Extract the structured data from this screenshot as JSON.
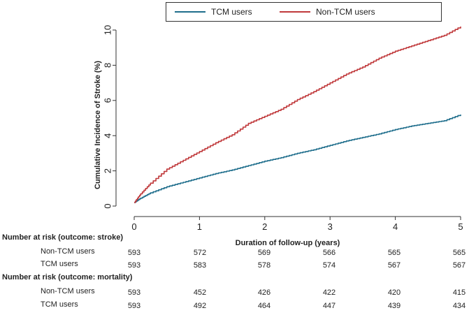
{
  "chart_data": {
    "type": "line",
    "title": "",
    "xlabel": "Duration of follow-up (years)",
    "ylabel": "Cumulative Incidence of Stroke (%)",
    "xlim": [
      0,
      5
    ],
    "ylim": [
      0,
      10
    ],
    "xticks": [
      "0",
      "1",
      "2",
      "3",
      "4",
      "5"
    ],
    "yticks": [
      "0",
      "2",
      "4",
      "6",
      "8",
      "10"
    ],
    "legend_position": "top",
    "series": [
      {
        "name": "TCM users",
        "color": "#1f6e8c",
        "x": [
          0,
          0.1,
          0.25,
          0.5,
          0.75,
          1.0,
          1.25,
          1.5,
          1.75,
          2.0,
          2.25,
          2.5,
          2.75,
          3.0,
          3.25,
          3.5,
          3.75,
          4.0,
          4.25,
          4.5,
          4.75,
          5.0
        ],
        "y": [
          0.2,
          0.45,
          0.75,
          1.1,
          1.35,
          1.6,
          1.85,
          2.05,
          2.3,
          2.55,
          2.75,
          3.0,
          3.2,
          3.45,
          3.7,
          3.9,
          4.1,
          4.35,
          4.55,
          4.7,
          4.85,
          5.2
        ]
      },
      {
        "name": "Non-TCM users",
        "color": "#c0393b",
        "x": [
          0,
          0.1,
          0.25,
          0.5,
          0.75,
          1.0,
          1.25,
          1.5,
          1.75,
          2.0,
          2.25,
          2.5,
          2.75,
          3.0,
          3.25,
          3.5,
          3.75,
          4.0,
          4.25,
          4.5,
          4.75,
          5.0
        ],
        "y": [
          0.2,
          0.7,
          1.3,
          2.1,
          2.6,
          3.1,
          3.6,
          4.05,
          4.7,
          5.1,
          5.5,
          6.05,
          6.5,
          7.0,
          7.5,
          7.9,
          8.4,
          8.8,
          9.1,
          9.4,
          9.7,
          10.2
        ]
      }
    ]
  },
  "legend": {
    "items": [
      {
        "label": "TCM users",
        "color": "#1f6e8c"
      },
      {
        "label": "Non-TCM users",
        "color": "#c0393b"
      }
    ]
  },
  "risk_table": {
    "stroke": {
      "heading": "Number at risk (outcome: stroke)",
      "rows": [
        {
          "label": "Non-TCM users",
          "values": [
            "593",
            "572",
            "569",
            "566",
            "565",
            "565"
          ]
        },
        {
          "label": "TCM users",
          "values": [
            "593",
            "583",
            "578",
            "574",
            "567",
            "567"
          ]
        }
      ]
    },
    "mortality": {
      "heading": "Number at risk (outcome: mortality)",
      "rows": [
        {
          "label": "Non-TCM users",
          "values": [
            "593",
            "452",
            "426",
            "422",
            "420",
            "415"
          ]
        },
        {
          "label": "TCM users",
          "values": [
            "593",
            "492",
            "464",
            "447",
            "439",
            "434"
          ]
        }
      ]
    }
  }
}
